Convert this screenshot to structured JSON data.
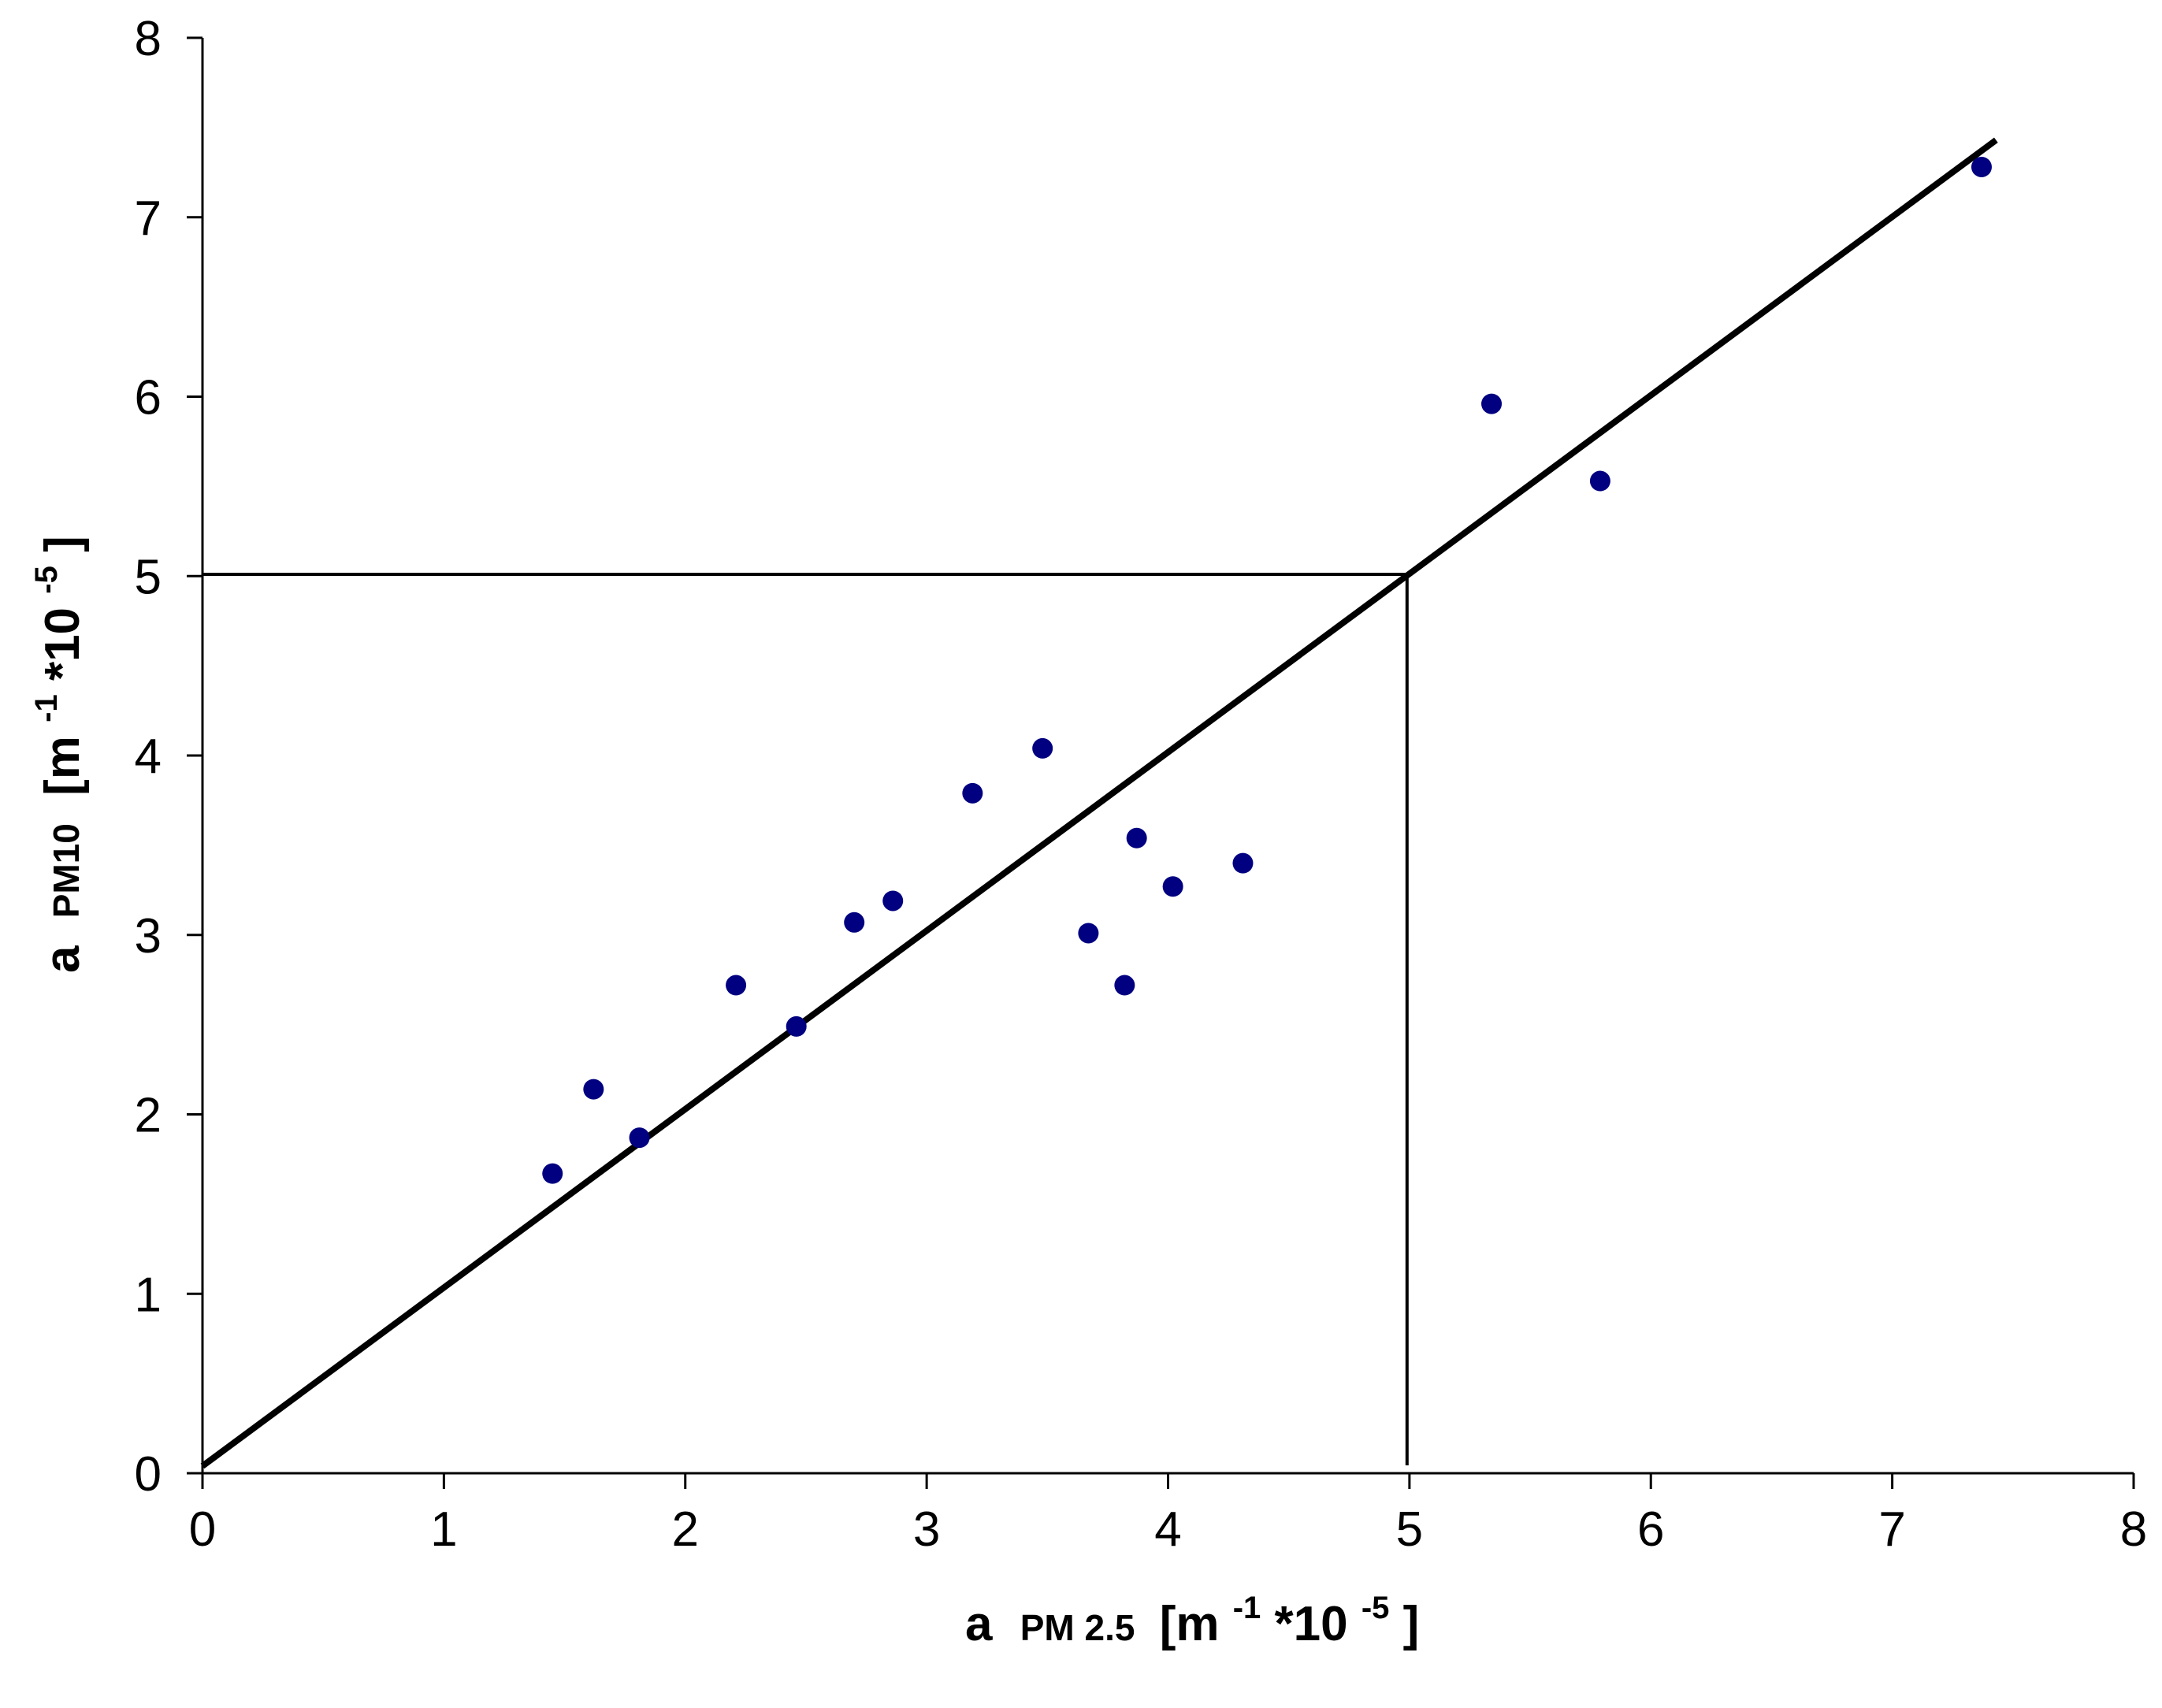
{
  "chart_data": {
    "type": "scatter",
    "x_axis": {
      "label_parts": {
        "main": "a",
        "sub": "PM 2.5",
        "unit_open": "[m",
        "exp1": "-1",
        "mid": "*10",
        "exp2": "-5",
        "unit_close": "]"
      },
      "range": [
        0,
        8
      ],
      "ticks": [
        0,
        1,
        2,
        3,
        4,
        5,
        6,
        7,
        8
      ]
    },
    "y_axis": {
      "label_parts": {
        "main": "a",
        "sub": "PM10",
        "unit_open": "[m",
        "exp1": "-1",
        "mid": "*10",
        "exp2": "-5",
        "unit_close": "]"
      },
      "range": [
        0,
        8
      ],
      "ticks": [
        0,
        1,
        2,
        3,
        4,
        5,
        6,
        7,
        8
      ]
    },
    "points": [
      {
        "x": 1.45,
        "y": 1.67
      },
      {
        "x": 1.62,
        "y": 2.14
      },
      {
        "x": 1.81,
        "y": 1.87
      },
      {
        "x": 2.21,
        "y": 2.72
      },
      {
        "x": 2.46,
        "y": 2.49
      },
      {
        "x": 2.7,
        "y": 3.07
      },
      {
        "x": 2.86,
        "y": 3.19
      },
      {
        "x": 3.19,
        "y": 3.79
      },
      {
        "x": 3.48,
        "y": 4.04
      },
      {
        "x": 3.67,
        "y": 3.01
      },
      {
        "x": 3.82,
        "y": 2.72
      },
      {
        "x": 3.87,
        "y": 3.54
      },
      {
        "x": 4.02,
        "y": 3.27
      },
      {
        "x": 4.31,
        "y": 3.4
      },
      {
        "x": 5.34,
        "y": 5.96
      },
      {
        "x": 5.79,
        "y": 5.53
      },
      {
        "x": 7.37,
        "y": 7.28
      }
    ],
    "fit_line": {
      "x": [
        0,
        7.43
      ],
      "y": [
        0.04,
        7.43
      ]
    },
    "reference_lines": {
      "x": 4.99,
      "y": 5.01
    },
    "grid": false,
    "legend": "none",
    "colors": {
      "marker": "#000080",
      "line": "#000000"
    }
  }
}
